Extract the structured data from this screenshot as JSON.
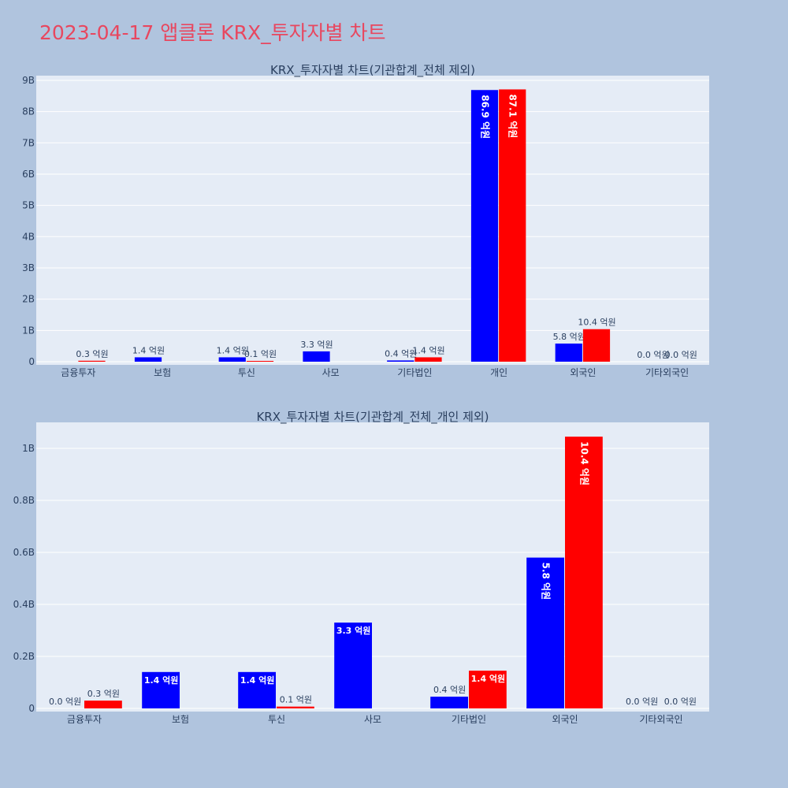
{
  "page_title": "2023-04-17 앱클론 KRX_투자자별 차트",
  "colors": {
    "buy": "#0000ff",
    "sell": "#ff0000",
    "plot_bg": "#e5ecf6",
    "paper_bg": "#b0c4de",
    "title": "#e8475f"
  },
  "chart_data": [
    {
      "type": "bar",
      "title": "KRX_투자자별 차트(기관합계_전체 제외)",
      "categories": [
        "금융투자",
        "보험",
        "투신",
        "사모",
        "기타법인",
        "개인",
        "외국인",
        "기타외국인"
      ],
      "series": [
        {
          "color": "#0000ff",
          "values": [
            0.0,
            0.14,
            0.14,
            0.33,
            0.04,
            8.69,
            0.58,
            0.0
          ],
          "labels": [
            "",
            "1.4 억원",
            "1.4 억원",
            "3.3 억원",
            "0.4 억원",
            "86.9 억원",
            "5.8 억원",
            "0.0 억원"
          ]
        },
        {
          "color": "#ff0000",
          "values": [
            0.03,
            0.0,
            0.01,
            0.0,
            0.14,
            8.71,
            1.04,
            0.0
          ],
          "labels": [
            "0.3 억원",
            "",
            "0.1 억원",
            "",
            "1.4 억원",
            "87.1 억원",
            "10.4 억원",
            "0.0 억원"
          ]
        }
      ],
      "y_ticks": [
        0,
        1,
        2,
        3,
        4,
        5,
        6,
        7,
        8,
        9
      ],
      "y_tick_labels": [
        "0",
        "1B",
        "2B",
        "3B",
        "4B",
        "5B",
        "6B",
        "7B",
        "8B",
        "9B"
      ],
      "ylim": [
        0,
        9.15
      ],
      "ylabel": "",
      "xlabel": "",
      "grid": true,
      "legend": "none"
    },
    {
      "type": "bar",
      "title": "KRX_투자자별 차트(기관합계_전체_개인 제외)",
      "categories": [
        "금융투자",
        "보험",
        "투신",
        "사모",
        "기타법인",
        "외국인",
        "기타외국인"
      ],
      "series": [
        {
          "color": "#0000ff",
          "values": [
            0.0,
            0.14,
            0.14,
            0.33,
            0.045,
            0.58,
            0.0
          ],
          "labels": [
            "0.0 억원",
            "1.4 억원",
            "1.4 억원",
            "3.3 억원",
            "0.4 억원",
            "5.8 억원",
            "0.0 억원"
          ]
        },
        {
          "color": "#ff0000",
          "values": [
            0.03,
            0.0,
            0.007,
            0.0,
            0.145,
            1.045,
            0.0
          ],
          "labels": [
            "0.3 억원",
            "",
            "0.1 억원",
            "",
            "1.4 억원",
            "10.4 억원",
            "0.0 억원"
          ]
        }
      ],
      "y_ticks": [
        0,
        0.2,
        0.4,
        0.6,
        0.8,
        1.0
      ],
      "y_tick_labels": [
        "0",
        "0.2B",
        "0.4B",
        "0.6B",
        "0.8B",
        "1B"
      ],
      "ylim": [
        0,
        1.1
      ],
      "ylabel": "",
      "xlabel": "",
      "grid": true,
      "legend": "none"
    }
  ]
}
